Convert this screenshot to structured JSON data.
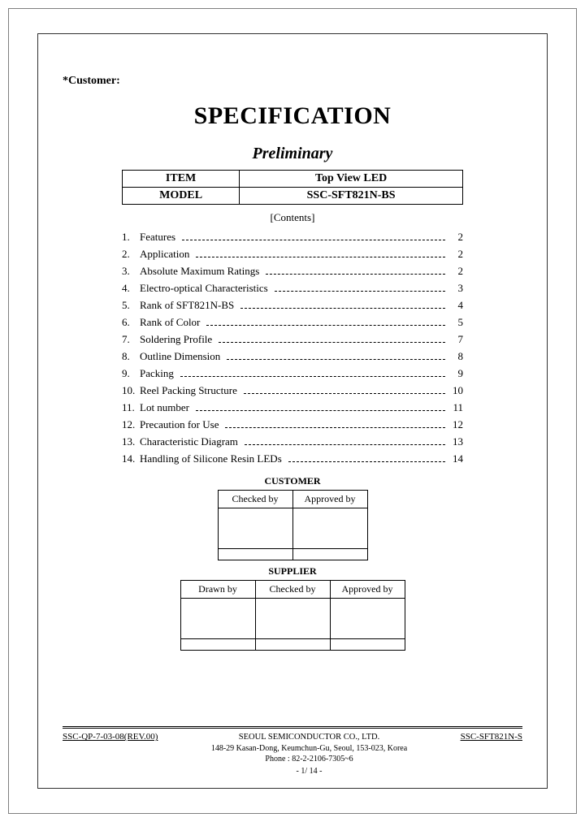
{
  "customer_label": "*Customer:",
  "title": "SPECIFICATION",
  "subtitle": "Preliminary",
  "spec_table": {
    "row1": {
      "left": "ITEM",
      "right": "Top View LED"
    },
    "row2": {
      "left": "MODEL",
      "right": "SSC-SFT821N-BS"
    }
  },
  "contents_label": "[Contents]",
  "toc": [
    {
      "num": "1.",
      "text": "Features",
      "page": "2"
    },
    {
      "num": "2.",
      "text": "Application",
      "page": "2"
    },
    {
      "num": "3.",
      "text": "Absolute Maximum Ratings",
      "page": "2"
    },
    {
      "num": "4.",
      "text": "Electro-optical Characteristics",
      "page": "3"
    },
    {
      "num": "5.",
      "text": "Rank of SFT821N-BS",
      "page": "4"
    },
    {
      "num": "6.",
      "text": "Rank of Color",
      "page": "5"
    },
    {
      "num": "7.",
      "text": "Soldering Profile",
      "page": "7"
    },
    {
      "num": "8.",
      "text": "Outline Dimension",
      "page": "8"
    },
    {
      "num": "9.",
      "text": "Packing",
      "page": "9"
    },
    {
      "num": "10.",
      "text": "Reel Packing Structure",
      "page": "10"
    },
    {
      "num": "11.",
      "text": "Lot number",
      "page": "11"
    },
    {
      "num": "12.",
      "text": "Precaution for Use",
      "page": "12"
    },
    {
      "num": "13.",
      "text": "Characteristic Diagram",
      "page": "13"
    },
    {
      "num": "14.",
      "text": "Handling of Silicone Resin LEDs",
      "page": "14"
    }
  ],
  "customer_section": {
    "label": "CUSTOMER",
    "headers": [
      "Checked by",
      "Approved by"
    ]
  },
  "supplier_section": {
    "label": "SUPPLIER",
    "headers": [
      "Drawn by",
      "Checked by",
      "Approved by"
    ]
  },
  "footer": {
    "left": "SSC-QP-7-03-08(REV.00)",
    "company": "SEOUL SEMICONDUCTOR CO., LTD.",
    "address": "148-29 Kasan-Dong, Keumchun-Gu, Seoul, 153-023, Korea",
    "phone": "Phone : 82-2-2106-7305~6",
    "page": "- 1/ 14 -",
    "right": "SSC-SFT821N-S"
  },
  "style": {
    "page_bg": "#ffffff",
    "text_color": "#000000",
    "border_color": "#000000",
    "outer_border": "#808080",
    "title_fontsize": 30,
    "subtitle_fontsize": 20,
    "body_fontsize": 13,
    "footer_fontsize": 10
  }
}
